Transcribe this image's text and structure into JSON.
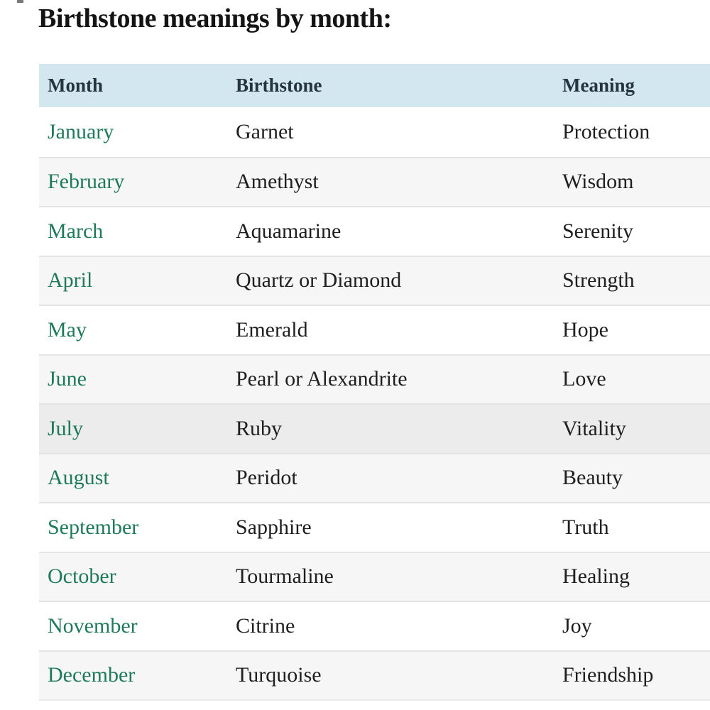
{
  "page_title": "Birthstone meanings by month:",
  "table": {
    "columns": {
      "month": "Month",
      "birthstone": "Birthstone",
      "meaning": "Meaning"
    },
    "highlighted_row_index": 6,
    "rows": [
      {
        "month": "January",
        "birthstone": "Garnet",
        "meaning": "Protection"
      },
      {
        "month": "February",
        "birthstone": "Amethyst",
        "meaning": "Wisdom"
      },
      {
        "month": "March",
        "birthstone": "Aquamarine",
        "meaning": "Serenity"
      },
      {
        "month": "April",
        "birthstone": "Quartz or Diamond",
        "meaning": "Strength"
      },
      {
        "month": "May",
        "birthstone": "Emerald",
        "meaning": "Hope"
      },
      {
        "month": "June",
        "birthstone": "Pearl or Alexandrite",
        "meaning": "Love"
      },
      {
        "month": "July",
        "birthstone": "Ruby",
        "meaning": "Vitality"
      },
      {
        "month": "August",
        "birthstone": "Peridot",
        "meaning": "Beauty"
      },
      {
        "month": "September",
        "birthstone": "Sapphire",
        "meaning": "Truth"
      },
      {
        "month": "October",
        "birthstone": "Tourmaline",
        "meaning": "Healing"
      },
      {
        "month": "November",
        "birthstone": "Citrine",
        "meaning": "Joy"
      },
      {
        "month": "December",
        "birthstone": "Turquoise",
        "meaning": "Friendship"
      }
    ]
  },
  "colors": {
    "header_bg": "#d3e7f1",
    "header_text": "#243440",
    "month_link_green": "#1e7a5b",
    "body_text": "#1f1f1f",
    "zebra_row_bg": "#f6f6f6",
    "highlighted_row_bg": "#ececec",
    "row_border": "#e3e3e3",
    "title_text": "#141414"
  }
}
